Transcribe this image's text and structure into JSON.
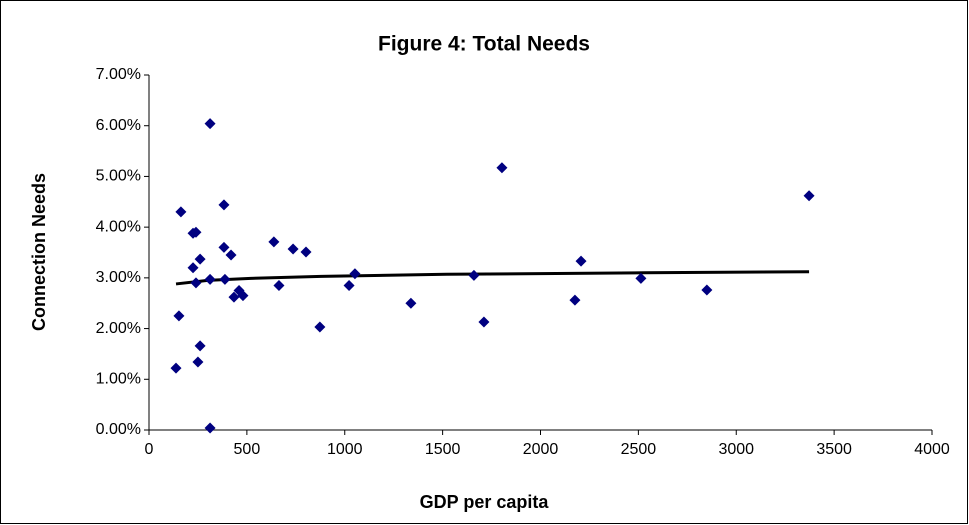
{
  "chart_data": {
    "type": "scatter",
    "title": "Figure 4: Total Needs",
    "x_label": "GDP per capita",
    "y_label": "Connection Needs",
    "series": [
      {
        "color": "#000080",
        "x": [
          138,
          153,
          163,
          225,
          240,
          225,
          240,
          261,
          261,
          250,
          312,
          312,
          312,
          383,
          383,
          419,
          388,
          434,
          460,
          480,
          638,
          664,
          736,
          802,
          873,
          1022,
          1052,
          1338,
          1660,
          1711,
          1803,
          2176,
          2207,
          2513,
          2850,
          3372
        ],
        "values": [
          1.22,
          2.25,
          4.3,
          3.88,
          3.9,
          3.2,
          2.9,
          3.37,
          1.66,
          1.34,
          6.04,
          2.97,
          0.04,
          4.44,
          3.6,
          3.45,
          2.97,
          2.62,
          2.75,
          2.65,
          3.71,
          2.85,
          3.57,
          3.51,
          2.03,
          2.85,
          3.08,
          2.5,
          3.05,
          2.13,
          5.17,
          2.56,
          3.33,
          2.99,
          2.76,
          4.62
        ]
      }
    ],
    "trend": {
      "color": "#000000",
      "x": [
        138,
        300,
        520,
        880,
        1520,
        2530,
        3372
      ],
      "values": [
        2.88,
        2.95,
        2.99,
        3.03,
        3.07,
        3.1,
        3.12
      ]
    },
    "xlim": [
      0,
      4000
    ],
    "xticks": [
      0,
      500,
      1000,
      1500,
      2000,
      2500,
      3000,
      3500,
      4000
    ],
    "ylim": [
      0,
      7
    ],
    "yticks": [
      {
        "value": 0,
        "label": "0.00%"
      },
      {
        "value": 1,
        "label": "1.00%"
      },
      {
        "value": 2,
        "label": "2.00%"
      },
      {
        "value": 3,
        "label": "3.00%"
      },
      {
        "value": 4,
        "label": "4.00%"
      },
      {
        "value": 5,
        "label": "5.00%"
      },
      {
        "value": 6,
        "label": "6.00%"
      },
      {
        "value": 7,
        "label": "7.00%"
      }
    ]
  }
}
